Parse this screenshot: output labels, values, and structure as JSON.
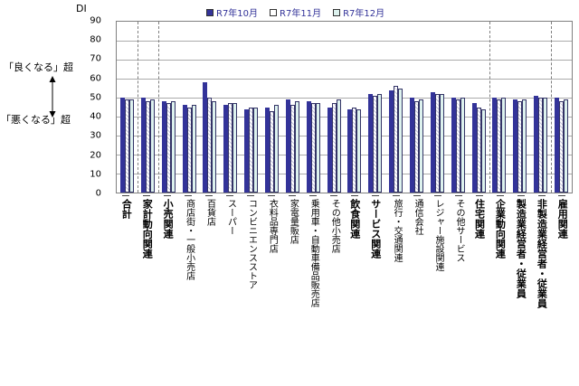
{
  "chart_data": {
    "type": "bar",
    "title": "",
    "y_axis_title": "DI",
    "ylim": [
      0,
      90
    ],
    "yticks": [
      0,
      10,
      20,
      30,
      40,
      50,
      60,
      70,
      80,
      90
    ],
    "grid": true,
    "legend_position": "top",
    "annotations": {
      "above_text": "「良くなる」超",
      "below_text": "「悪くなる」超"
    },
    "categories": [
      {
        "label": "合計",
        "bold": true
      },
      {
        "label": "家計動向関連",
        "bold": true
      },
      {
        "label": "小売関連",
        "bold": true
      },
      {
        "label": "商店街・一般小売店",
        "bold": false
      },
      {
        "label": "百貨店",
        "bold": false
      },
      {
        "label": "スーパー",
        "bold": false
      },
      {
        "label": "コンビニエンスストア",
        "bold": false
      },
      {
        "label": "衣料品専門店",
        "bold": false
      },
      {
        "label": "家電量販店",
        "bold": false
      },
      {
        "label": "乗用車・自動車備品販売店",
        "bold": false
      },
      {
        "label": "その他小売店",
        "bold": false
      },
      {
        "label": "飲食関連",
        "bold": true
      },
      {
        "label": "サービス関連",
        "bold": true
      },
      {
        "label": "旅行・交通関連",
        "bold": false
      },
      {
        "label": "通信会社",
        "bold": false
      },
      {
        "label": "レジャー施設関連",
        "bold": false
      },
      {
        "label": "その他サービス",
        "bold": false
      },
      {
        "label": "住宅関連",
        "bold": true
      },
      {
        "label": "企業動向関連",
        "bold": true
      },
      {
        "label": "製造業経営者・従業員",
        "bold": true
      },
      {
        "label": "非製造業経営者・従業員",
        "bold": true
      },
      {
        "label": "雇用関連",
        "bold": true
      }
    ],
    "series": [
      {
        "name": "R7年10月",
        "color": "#333399",
        "fill": "solid",
        "values": [
          50,
          50,
          48,
          46,
          58,
          46,
          44,
          45,
          49,
          48,
          45,
          44,
          52,
          54,
          50,
          53,
          50,
          47,
          50,
          49,
          51,
          50
        ]
      },
      {
        "name": "R7年11月",
        "color": "#ffffff",
        "fill": "hatched",
        "values": [
          49,
          48,
          47,
          45,
          50,
          47,
          45,
          43,
          46,
          47,
          47,
          45,
          51,
          56,
          48,
          52,
          49,
          45,
          49,
          48,
          50,
          48
        ]
      },
      {
        "name": "R7年12月",
        "color": "#ddf2ee",
        "fill": "solid",
        "values": [
          49,
          49,
          48,
          46,
          48,
          47,
          45,
          46,
          48,
          47,
          49,
          44,
          52,
          55,
          49,
          52,
          50,
          44,
          50,
          49,
          50,
          49
        ]
      }
    ],
    "group_separators_after": [
      0,
      1,
      17,
      20
    ],
    "colors": {
      "grid": "#ababab",
      "axis_border": "#808080",
      "legend_text": "#333399",
      "bar_outline": "#333366"
    }
  }
}
